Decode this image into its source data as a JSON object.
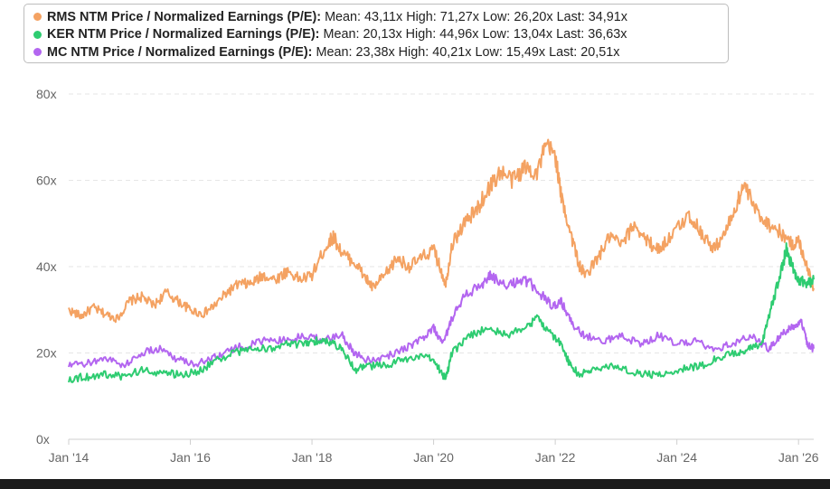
{
  "chart_data": {
    "type": "line",
    "title": "",
    "xlabel": "",
    "ylabel": "",
    "ylim": [
      0,
      80
    ],
    "y_ticks": [
      "0x",
      "20x",
      "40x",
      "60x",
      "80x"
    ],
    "y_tick_values": [
      0,
      20,
      40,
      60,
      80
    ],
    "xlim": [
      2014.0,
      2026.25
    ],
    "x_ticks": [
      "Jan '14",
      "Jan '16",
      "Jan '18",
      "Jan '20",
      "Jan '22",
      "Jan '24",
      "Jan '26"
    ],
    "x_tick_values": [
      2014,
      2016,
      2018,
      2020,
      2022,
      2024,
      2026
    ],
    "grid": "horizontal-dashed",
    "legend_position": "top-left",
    "series": [
      {
        "name": "RMS NTM Price / Normalized Earnings (P/E):",
        "color": "#f4a262",
        "stats": "Mean: 43,11x High: 71,27x Low: 26,20x Last: 34,91x",
        "points": [
          [
            2014.0,
            30
          ],
          [
            2014.2,
            28.5
          ],
          [
            2014.4,
            30.5
          ],
          [
            2014.6,
            29
          ],
          [
            2014.8,
            28
          ],
          [
            2015.0,
            32
          ],
          [
            2015.2,
            33
          ],
          [
            2015.4,
            31
          ],
          [
            2015.6,
            34
          ],
          [
            2015.8,
            32
          ],
          [
            2016.0,
            30
          ],
          [
            2016.2,
            29
          ],
          [
            2016.4,
            31
          ],
          [
            2016.6,
            34
          ],
          [
            2016.8,
            36
          ],
          [
            2017.0,
            36
          ],
          [
            2017.2,
            38
          ],
          [
            2017.4,
            37
          ],
          [
            2017.6,
            39
          ],
          [
            2017.8,
            37
          ],
          [
            2018.0,
            38
          ],
          [
            2018.2,
            44
          ],
          [
            2018.35,
            47
          ],
          [
            2018.5,
            43
          ],
          [
            2018.7,
            41
          ],
          [
            2018.9,
            37
          ],
          [
            2019.0,
            35
          ],
          [
            2019.2,
            38
          ],
          [
            2019.4,
            42
          ],
          [
            2019.6,
            40
          ],
          [
            2019.8,
            42
          ],
          [
            2020.0,
            44
          ],
          [
            2020.1,
            40
          ],
          [
            2020.2,
            36
          ],
          [
            2020.3,
            45
          ],
          [
            2020.5,
            50
          ],
          [
            2020.7,
            53
          ],
          [
            2020.9,
            58
          ],
          [
            2021.1,
            62
          ],
          [
            2021.3,
            60
          ],
          [
            2021.5,
            63
          ],
          [
            2021.7,
            62
          ],
          [
            2021.85,
            68
          ],
          [
            2022.0,
            66
          ],
          [
            2022.1,
            56
          ],
          [
            2022.25,
            48
          ],
          [
            2022.4,
            40
          ],
          [
            2022.5,
            38
          ],
          [
            2022.7,
            42
          ],
          [
            2022.9,
            47
          ],
          [
            2023.1,
            45
          ],
          [
            2023.3,
            50
          ],
          [
            2023.5,
            46
          ],
          [
            2023.7,
            44
          ],
          [
            2023.9,
            47
          ],
          [
            2024.2,
            52
          ],
          [
            2024.4,
            48
          ],
          [
            2024.6,
            44
          ],
          [
            2024.8,
            48
          ],
          [
            2025.0,
            55
          ],
          [
            2025.1,
            59
          ],
          [
            2025.3,
            53
          ],
          [
            2025.5,
            50
          ],
          [
            2025.7,
            48
          ],
          [
            2025.9,
            45
          ],
          [
            2026.0,
            46
          ],
          [
            2026.1,
            42
          ],
          [
            2026.25,
            35
          ]
        ]
      },
      {
        "name": "KER NTM Price / Normalized Earnings (P/E):",
        "color": "#2ecc71",
        "stats": "Mean: 20,13x High: 44,96x Low: 13,04x Last: 36,63x",
        "points": [
          [
            2014.0,
            14
          ],
          [
            2014.3,
            14.5
          ],
          [
            2014.6,
            15
          ],
          [
            2014.9,
            14.5
          ],
          [
            2015.2,
            16
          ],
          [
            2015.5,
            15.5
          ],
          [
            2015.8,
            15
          ],
          [
            2016.1,
            15.5
          ],
          [
            2016.4,
            18
          ],
          [
            2016.7,
            20
          ],
          [
            2017.0,
            21
          ],
          [
            2017.3,
            21
          ],
          [
            2017.6,
            22
          ],
          [
            2017.9,
            22
          ],
          [
            2018.1,
            23
          ],
          [
            2018.3,
            22.5
          ],
          [
            2018.5,
            21
          ],
          [
            2018.7,
            16
          ],
          [
            2018.9,
            17
          ],
          [
            2019.2,
            17
          ],
          [
            2019.5,
            18.5
          ],
          [
            2019.8,
            19
          ],
          [
            2020.0,
            18.5
          ],
          [
            2020.15,
            15
          ],
          [
            2020.2,
            14
          ],
          [
            2020.3,
            20
          ],
          [
            2020.6,
            24
          ],
          [
            2020.9,
            26
          ],
          [
            2021.2,
            24
          ],
          [
            2021.5,
            26
          ],
          [
            2021.7,
            28
          ],
          [
            2021.9,
            25
          ],
          [
            2022.1,
            22
          ],
          [
            2022.25,
            17
          ],
          [
            2022.4,
            15
          ],
          [
            2022.6,
            16
          ],
          [
            2022.9,
            17
          ],
          [
            2023.2,
            16
          ],
          [
            2023.5,
            15
          ],
          [
            2023.8,
            15
          ],
          [
            2024.1,
            16.5
          ],
          [
            2024.4,
            17
          ],
          [
            2024.7,
            19
          ],
          [
            2025.0,
            20
          ],
          [
            2025.2,
            21
          ],
          [
            2025.4,
            22
          ],
          [
            2025.5,
            28
          ],
          [
            2025.6,
            33
          ],
          [
            2025.7,
            38
          ],
          [
            2025.8,
            44
          ],
          [
            2025.9,
            40
          ],
          [
            2026.0,
            37
          ],
          [
            2026.15,
            36
          ],
          [
            2026.25,
            37
          ]
        ]
      },
      {
        "name": "MC NTM Price / Normalized Earnings (P/E):",
        "color": "#b366f0",
        "stats": "Mean: 23,38x High: 40,21x Low: 15,49x Last: 20,51x",
        "points": [
          [
            2014.0,
            17
          ],
          [
            2014.3,
            17.5
          ],
          [
            2014.6,
            19
          ],
          [
            2014.9,
            17
          ],
          [
            2015.2,
            20
          ],
          [
            2015.5,
            21
          ],
          [
            2015.8,
            18.5
          ],
          [
            2016.1,
            17.5
          ],
          [
            2016.4,
            19
          ],
          [
            2016.7,
            21
          ],
          [
            2017.0,
            22
          ],
          [
            2017.3,
            23
          ],
          [
            2017.6,
            23
          ],
          [
            2017.9,
            24
          ],
          [
            2018.2,
            23
          ],
          [
            2018.5,
            24
          ],
          [
            2018.7,
            20
          ],
          [
            2018.9,
            18.5
          ],
          [
            2019.2,
            19
          ],
          [
            2019.5,
            21
          ],
          [
            2019.8,
            23
          ],
          [
            2020.0,
            26
          ],
          [
            2020.15,
            22
          ],
          [
            2020.3,
            28
          ],
          [
            2020.5,
            33
          ],
          [
            2020.8,
            36
          ],
          [
            2020.95,
            38
          ],
          [
            2021.2,
            35
          ],
          [
            2021.4,
            37
          ],
          [
            2021.6,
            36
          ],
          [
            2021.8,
            33
          ],
          [
            2021.95,
            31
          ],
          [
            2022.1,
            32
          ],
          [
            2022.3,
            26
          ],
          [
            2022.5,
            24
          ],
          [
            2022.8,
            23
          ],
          [
            2023.1,
            24
          ],
          [
            2023.4,
            22
          ],
          [
            2023.7,
            24
          ],
          [
            2024.0,
            22
          ],
          [
            2024.3,
            23
          ],
          [
            2024.6,
            21
          ],
          [
            2024.9,
            22
          ],
          [
            2025.2,
            24
          ],
          [
            2025.5,
            21
          ],
          [
            2025.7,
            24
          ],
          [
            2025.9,
            26
          ],
          [
            2026.05,
            27
          ],
          [
            2026.15,
            22
          ],
          [
            2026.25,
            21
          ]
        ]
      }
    ]
  }
}
